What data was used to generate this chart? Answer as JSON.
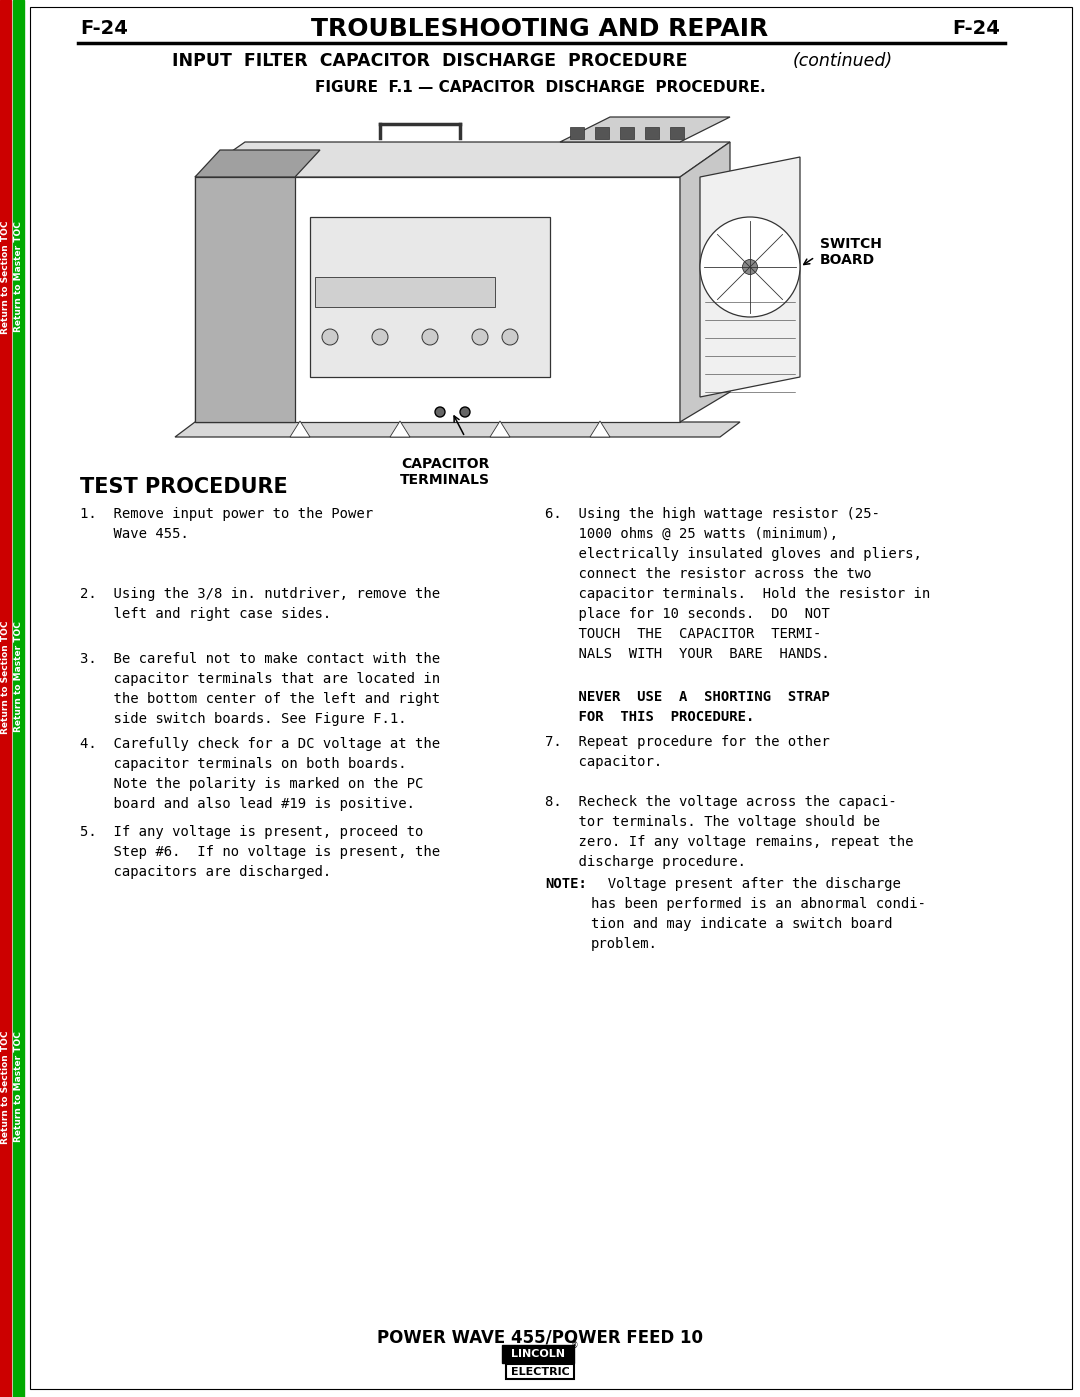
{
  "page_label_left": "F-24",
  "page_label_right": "F-24",
  "main_title": "TROUBLESHOOTING AND REPAIR",
  "subtitle": "INPUT  FILTER  CAPACITOR  DISCHARGE  PROCEDURE",
  "subtitle_italic": "(continued)",
  "figure_caption": "FIGURE  F.1 — CAPACITOR  DISCHARGE  PROCEDURE.",
  "section_title": "TEST PROCEDURE",
  "footer_title": "POWER WAVE 455/POWER FEED 10",
  "left_bar_red": "#cc0000",
  "left_bar_green": "#00aa00",
  "bg_color": "#ffffff",
  "text_color": "#000000",
  "line_color": "#333333",
  "switch_board_label": "SWITCH\nBOARD",
  "capacitor_label": "CAPACITOR\nTERMINALS",
  "step1": "1.  Remove input power to the Power\n    Wave 455.",
  "step2": "2.  Using the 3/8 in. nutdriver, remove the\n    left and right case sides.",
  "step3": "3.  Be careful not to make contact with the\n    capacitor terminals that are located in\n    the bottom center of the left and right\n    side switch boards. See Figure F.1.",
  "step4": "4.  Carefully check for a DC voltage at the\n    capacitor terminals on both boards.\n    Note the polarity is marked on the PC\n    board and also lead #19 is positive.",
  "step5": "5.  If any voltage is present, proceed to\n    Step #6.  If no voltage is present, the\n    capacitors are discharged.",
  "step6a": "6.  Using the high wattage resistor (25-\n    1000 ohms @ 25 watts (minimum),\n    electrically insulated gloves and pliers,\n    connect the resistor across the two\n    capacitor terminals.  Hold the resistor in\n    place for 10 seconds.  DO  NOT\n    TOUCH  THE  CAPACITOR  TERMI-\n    NALS  WITH  YOUR  BARE  HANDS.",
  "step6b": "    NEVER  USE  A  SHORTING  STRAP\n    FOR  THIS  PROCEDURE.",
  "step7": "7.  Repeat procedure for the other\n    capacitor.",
  "step8": "8.  Recheck the voltage across the capaci-\n    tor terminals. The voltage should be\n    zero. If any voltage remains, repeat the\n    discharge procedure.",
  "note_label": "NOTE:",
  "note_body": "  Voltage present after the discharge\nhas been performed is an abnormal condi-\ntion and may indicate a switch board\nproblem."
}
